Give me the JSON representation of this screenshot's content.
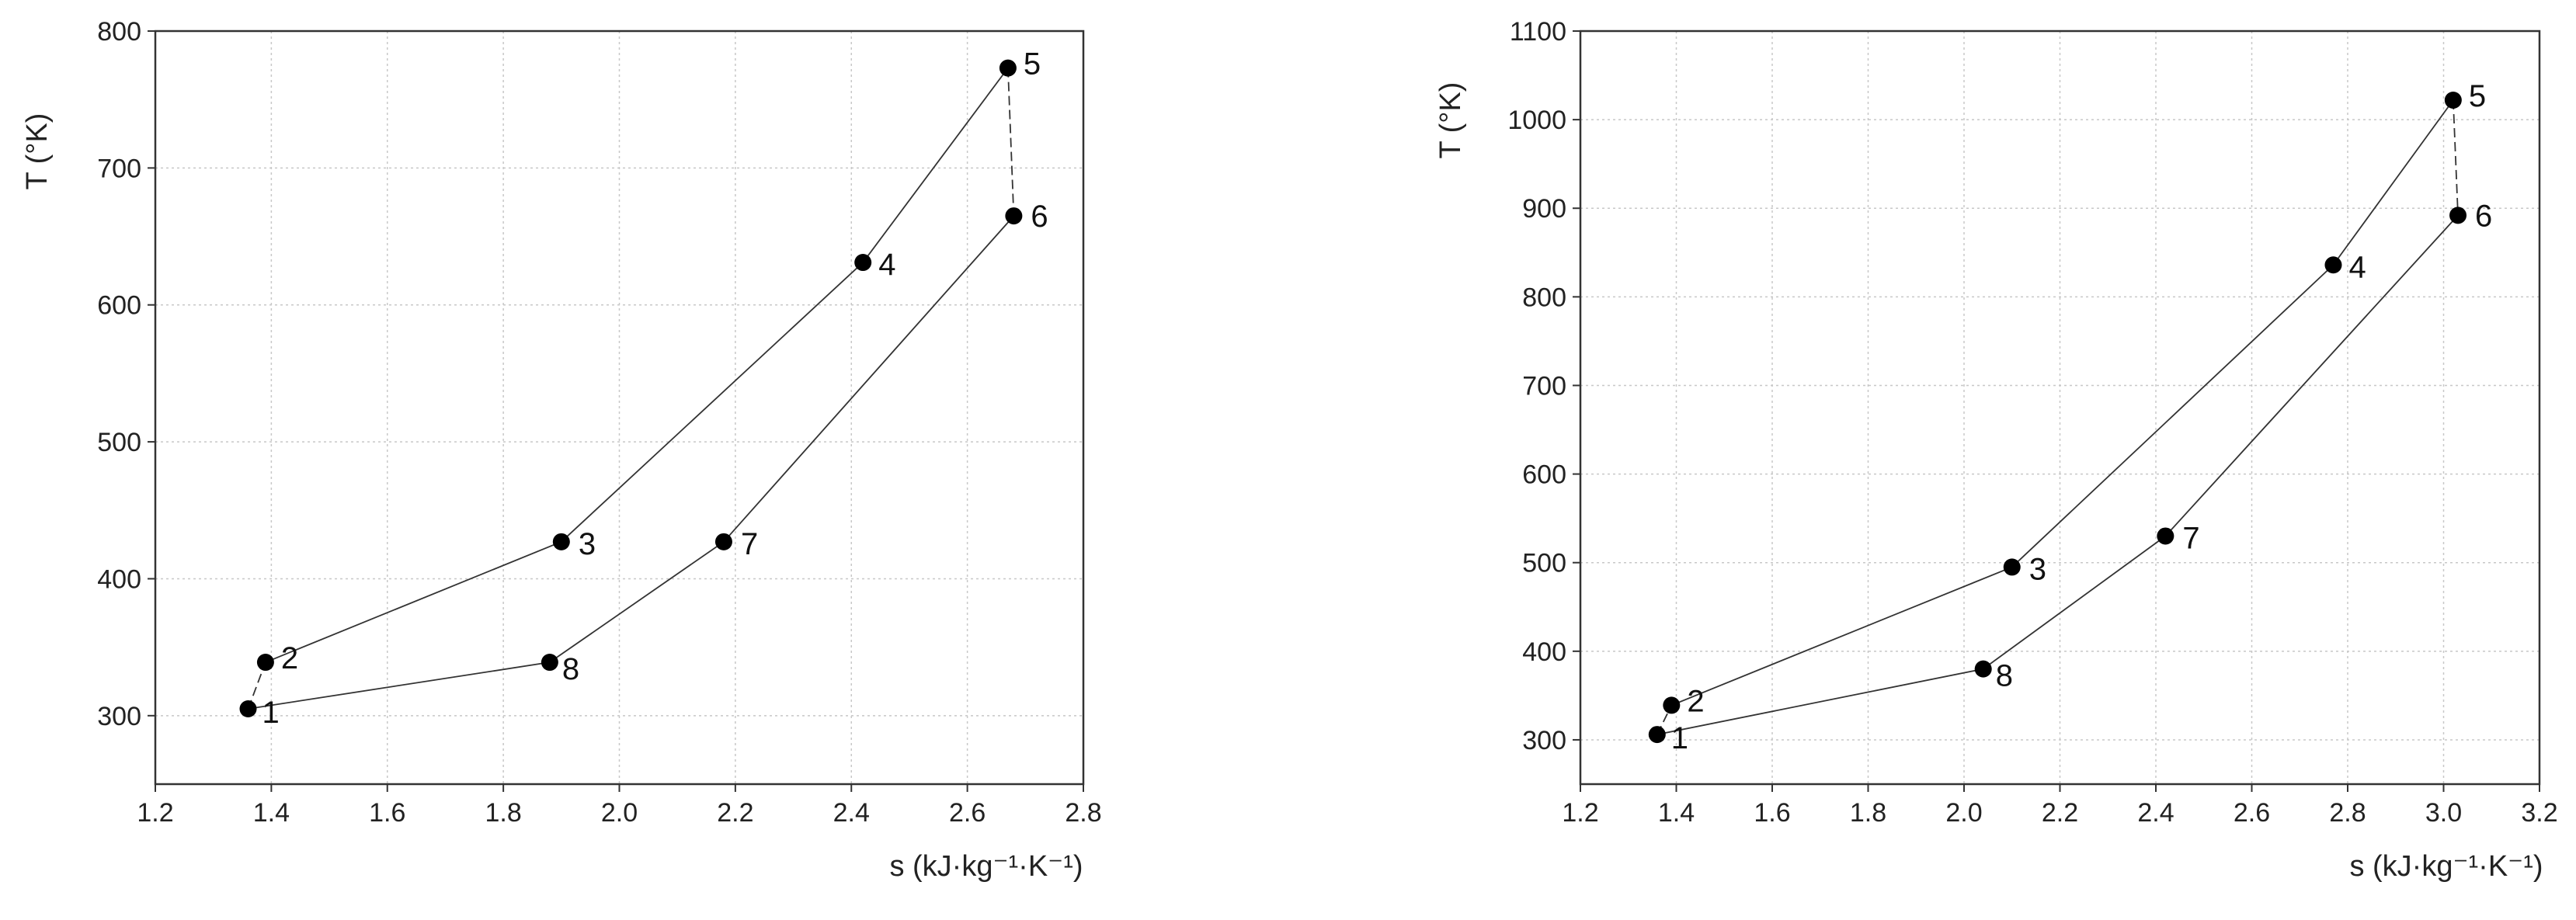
{
  "chart_data": [
    {
      "type": "line",
      "title": "",
      "xlabel": "s (kJ·kg⁻¹·K⁻¹)",
      "ylabel": "T (°K)",
      "xlim": [
        1.2,
        2.8
      ],
      "ylim": [
        250,
        800
      ],
      "xticks": [
        "1.2",
        "1.4",
        "1.6",
        "1.8",
        "2.0",
        "2.2",
        "2.4",
        "2.6",
        "2.8"
      ],
      "yticks": [
        "300",
        "400",
        "500",
        "600",
        "700",
        "800"
      ],
      "grid": true,
      "points": [
        {
          "label": "1",
          "s": 1.36,
          "T": 305
        },
        {
          "label": "2",
          "s": 1.39,
          "T": 339
        },
        {
          "label": "3",
          "s": 1.9,
          "T": 427
        },
        {
          "label": "4",
          "s": 2.42,
          "T": 631
        },
        {
          "label": "5",
          "s": 2.67,
          "T": 773
        },
        {
          "label": "6",
          "s": 2.68,
          "T": 665
        },
        {
          "label": "7",
          "s": 2.18,
          "T": 427
        },
        {
          "label": "8",
          "s": 1.88,
          "T": 339
        }
      ]
    },
    {
      "type": "line",
      "title": "",
      "xlabel": "s (kJ·kg⁻¹·K⁻¹)",
      "ylabel": "T (°K)",
      "xlim": [
        1.2,
        3.2
      ],
      "ylim": [
        250,
        1100
      ],
      "xticks": [
        "1.2",
        "1.4",
        "1.6",
        "1.8",
        "2.0",
        "2.2",
        "2.4",
        "2.6",
        "2.8",
        "3.0",
        "3.2"
      ],
      "yticks": [
        "300",
        "400",
        "500",
        "600",
        "700",
        "800",
        "900",
        "1000",
        "1100"
      ],
      "grid": true,
      "points": [
        {
          "label": "1",
          "s": 1.36,
          "T": 306
        },
        {
          "label": "2",
          "s": 1.39,
          "T": 339
        },
        {
          "label": "3",
          "s": 2.1,
          "T": 495
        },
        {
          "label": "4",
          "s": 2.77,
          "T": 836
        },
        {
          "label": "5",
          "s": 3.02,
          "T": 1022
        },
        {
          "label": "6",
          "s": 3.03,
          "T": 892
        },
        {
          "label": "7",
          "s": 2.42,
          "T": 530
        },
        {
          "label": "8",
          "s": 2.04,
          "T": 380
        }
      ]
    }
  ]
}
